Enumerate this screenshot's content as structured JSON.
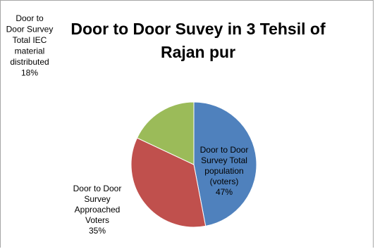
{
  "chart_data": {
    "type": "pie",
    "title": "Door to Door Suvey in 3 Tehsil of Rajan pur",
    "slices": [
      {
        "label_lines": [
          "Door to Door",
          "Survey Total",
          "population",
          "(voters)"
        ],
        "percent_label": "47%",
        "value": 47,
        "color": "#4f81bd"
      },
      {
        "label_lines": [
          "Door to Door",
          "Survey",
          "Approached",
          "Voters"
        ],
        "percent_label": "35%",
        "value": 35,
        "color": "#c0504d"
      },
      {
        "label_lines": [
          "Door to",
          "Door Survey",
          "Total IEC",
          "material",
          "distributed"
        ],
        "percent_label": "18%",
        "value": 18,
        "color": "#9bbb59"
      }
    ],
    "start_angle_deg": 0,
    "direction": "clockwise",
    "legend": "none"
  }
}
